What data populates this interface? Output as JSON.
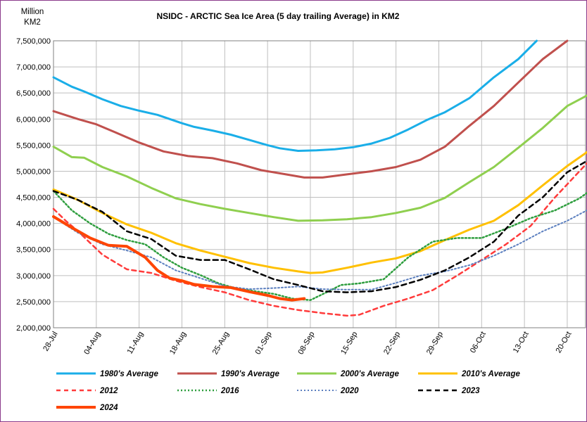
{
  "chart_data": {
    "type": "line",
    "title": "NSIDC - ARCTIC Sea Ice Area (5 day trailing Average) in KM2",
    "ylabel_line1": "Million",
    "ylabel_line2": "KM2",
    "ylim": [
      2000000,
      7500000
    ],
    "y_ticks": [
      2000000,
      2500000,
      3000000,
      3500000,
      4000000,
      4500000,
      5000000,
      5500000,
      6000000,
      6500000,
      7000000,
      7500000
    ],
    "y_tick_labels": [
      "2,000,000",
      "2,500,000",
      "3,000,000",
      "3,500,000",
      "4,000,000",
      "4,500,000",
      "5,000,000",
      "5,500,000",
      "6,000,000",
      "6,500,000",
      "7,000,000",
      "7,500,000"
    ],
    "x_tick_labels": [
      "28-Jul",
      "04-Aug",
      "11-Aug",
      "18-Aug",
      "25-Aug",
      "01-Sep",
      "08-Sep",
      "15-Sep",
      "22-Sep",
      "29-Sep",
      "06-Oct",
      "13-Oct",
      "20-Oct"
    ],
    "grid": true,
    "legend_position": "bottom",
    "series": [
      {
        "name": "1980's Average",
        "color": "#1aaee8",
        "dash": "solid",
        "width": 3,
        "x": [
          0,
          3,
          5,
          8,
          11,
          14,
          17,
          21,
          23,
          26,
          29,
          32,
          35,
          37,
          40,
          43,
          46,
          49,
          52,
          55,
          58,
          61,
          64,
          68,
          72,
          76,
          79
        ],
        "y": [
          6800000,
          6620000,
          6530000,
          6380000,
          6250000,
          6160000,
          6080000,
          5920000,
          5850000,
          5780000,
          5700000,
          5600000,
          5500000,
          5440000,
          5390000,
          5400000,
          5420000,
          5460000,
          5530000,
          5640000,
          5800000,
          5980000,
          6130000,
          6400000,
          6800000,
          7150000,
          7500000
        ]
      },
      {
        "name": "1990's Average",
        "color": "#c0504d",
        "dash": "solid",
        "width": 3,
        "x": [
          0,
          4,
          7,
          10,
          14,
          18,
          22,
          26,
          30,
          34,
          38,
          41,
          44,
          48,
          52,
          56,
          60,
          64,
          68,
          72,
          76,
          80,
          84
        ],
        "y": [
          6150000,
          6000000,
          5900000,
          5750000,
          5550000,
          5380000,
          5290000,
          5250000,
          5150000,
          5020000,
          4940000,
          4880000,
          4880000,
          4940000,
          5000000,
          5080000,
          5220000,
          5470000,
          5870000,
          6250000,
          6700000,
          7150000,
          7500000
        ]
      },
      {
        "name": "2000's Average",
        "color": "#8fcf4f",
        "dash": "solid",
        "width": 3,
        "x": [
          0,
          3,
          5,
          8,
          12,
          16,
          20,
          24,
          28,
          32,
          36,
          40,
          44,
          48,
          52,
          56,
          60,
          64,
          68,
          72,
          76,
          80,
          84,
          88
        ],
        "y": [
          5470000,
          5270000,
          5260000,
          5080000,
          4900000,
          4680000,
          4480000,
          4370000,
          4280000,
          4200000,
          4120000,
          4050000,
          4060000,
          4080000,
          4120000,
          4200000,
          4300000,
          4490000,
          4790000,
          5080000,
          5450000,
          5830000,
          6250000,
          6500000
        ]
      },
      {
        "name": "2010's Average",
        "color": "#ffc000",
        "dash": "solid",
        "width": 3,
        "x": [
          0,
          4,
          8,
          12,
          16,
          20,
          24,
          28,
          32,
          36,
          40,
          42,
          44,
          48,
          52,
          56,
          60,
          64,
          68,
          72,
          76,
          80,
          84,
          88
        ],
        "y": [
          4650000,
          4450000,
          4200000,
          3980000,
          3820000,
          3620000,
          3480000,
          3360000,
          3240000,
          3150000,
          3080000,
          3050000,
          3060000,
          3150000,
          3250000,
          3330000,
          3470000,
          3680000,
          3880000,
          4050000,
          4350000,
          4730000,
          5100000,
          5430000
        ]
      },
      {
        "name": "2012",
        "color": "#ff3b3b",
        "dash": "6,5",
        "width": 2.5,
        "x": [
          0,
          2,
          4,
          8,
          12,
          16,
          20,
          24,
          28,
          32,
          36,
          40,
          44,
          48,
          50,
          54,
          58,
          62,
          66,
          70,
          74,
          78,
          82,
          88
        ],
        "y": [
          4280000,
          4050000,
          3850000,
          3400000,
          3120000,
          3050000,
          2900000,
          2780000,
          2680000,
          2530000,
          2420000,
          2340000,
          2280000,
          2230000,
          2250000,
          2420000,
          2560000,
          2720000,
          3000000,
          3300000,
          3600000,
          3950000,
          4500000,
          5250000
        ]
      },
      {
        "name": "2016",
        "color": "#2e9e3e",
        "dash": "2,3",
        "width": 2.5,
        "x": [
          0,
          3,
          6,
          9,
          12,
          15,
          18,
          21,
          24,
          27,
          30,
          33,
          36,
          39,
          42,
          45,
          47,
          50,
          54,
          58,
          62,
          66,
          70,
          74,
          78,
          82,
          86,
          88
        ],
        "y": [
          4620000,
          4250000,
          4000000,
          3800000,
          3680000,
          3600000,
          3350000,
          3150000,
          3010000,
          2850000,
          2750000,
          2700000,
          2650000,
          2560000,
          2530000,
          2700000,
          2820000,
          2850000,
          2930000,
          3350000,
          3650000,
          3720000,
          3720000,
          3900000,
          4100000,
          4250000,
          4480000,
          4650000
        ]
      },
      {
        "name": "2020",
        "color": "#5b7fbf",
        "dash": "2,3",
        "width": 2,
        "x": [
          0,
          4,
          8,
          12,
          16,
          20,
          24,
          28,
          32,
          36,
          40,
          44,
          48,
          52,
          56,
          60,
          64,
          68,
          72,
          76,
          80,
          84,
          88
        ],
        "y": [
          4120000,
          3820000,
          3600000,
          3480000,
          3350000,
          3100000,
          2950000,
          2800000,
          2740000,
          2760000,
          2790000,
          2740000,
          2730000,
          2730000,
          2860000,
          3000000,
          3080000,
          3200000,
          3380000,
          3600000,
          3850000,
          4050000,
          4300000
        ]
      },
      {
        "name": "2023",
        "color": "#000000",
        "dash": "7,5",
        "width": 2.5,
        "x": [
          0,
          4,
          8,
          12,
          16,
          20,
          24,
          28,
          32,
          36,
          40,
          44,
          48,
          52,
          56,
          60,
          64,
          68,
          72,
          76,
          80,
          84,
          88
        ],
        "y": [
          4620000,
          4450000,
          4220000,
          3850000,
          3700000,
          3380000,
          3300000,
          3300000,
          3120000,
          2930000,
          2820000,
          2700000,
          2680000,
          2700000,
          2780000,
          2920000,
          3100000,
          3350000,
          3650000,
          4150000,
          4500000,
          4980000,
          5250000
        ]
      },
      {
        "name": "2024",
        "color": "#ff4500",
        "dash": "solid",
        "width": 4,
        "x": [
          0,
          3,
          6,
          9,
          12,
          15,
          17,
          19,
          21,
          23,
          26,
          29,
          32,
          35,
          37,
          39,
          41
        ],
        "y": [
          4130000,
          3920000,
          3720000,
          3580000,
          3560000,
          3350000,
          3100000,
          2950000,
          2900000,
          2830000,
          2790000,
          2770000,
          2690000,
          2620000,
          2560000,
          2530000,
          2560000
        ]
      }
    ]
  }
}
